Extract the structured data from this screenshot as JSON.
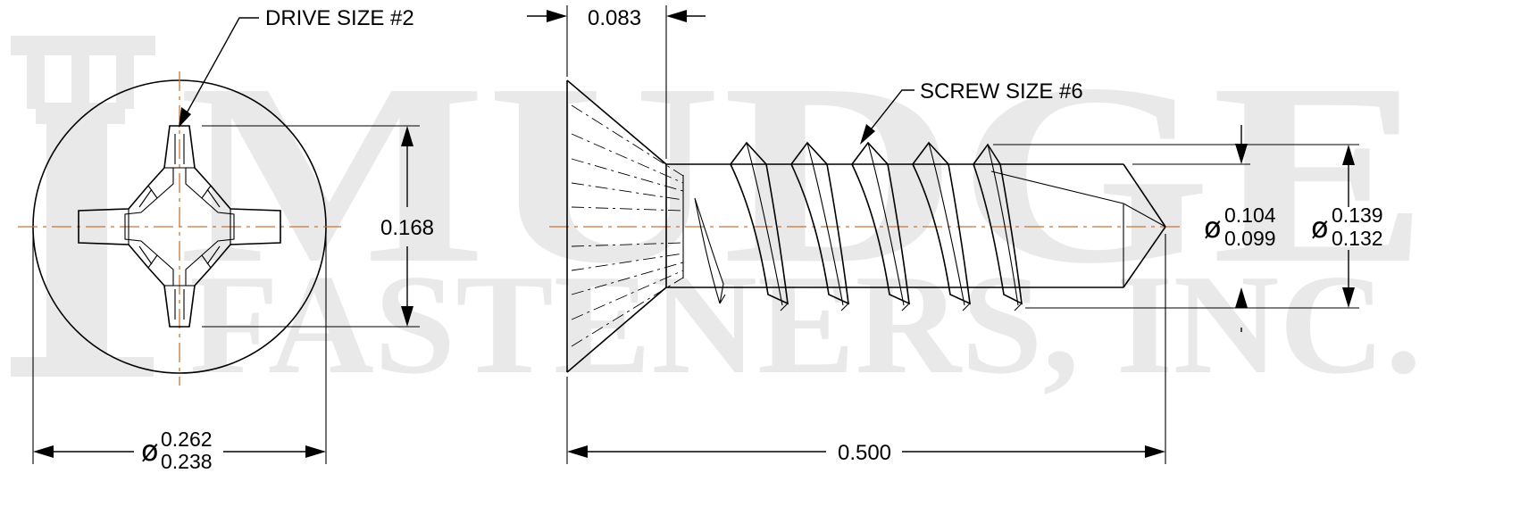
{
  "watermark": {
    "line1": "MUDGE",
    "line2": "FASTENERS, INC.",
    "color": "#e9e9e9"
  },
  "drive_label": "DRIVE SIZE #2",
  "screw_label": "SCREW SIZE #6",
  "diameter_symbol": "ø",
  "dims": {
    "recess_width": "0.168",
    "head_dia_max": "0.262",
    "head_dia_min": "0.238",
    "head_height": "0.083",
    "length": "0.500",
    "minor_dia_max": "0.104",
    "minor_dia_min": "0.099",
    "major_dia_max": "0.139",
    "major_dia_min": "0.132"
  },
  "colors": {
    "centerline": "#c8763a",
    "line": "#000000"
  }
}
